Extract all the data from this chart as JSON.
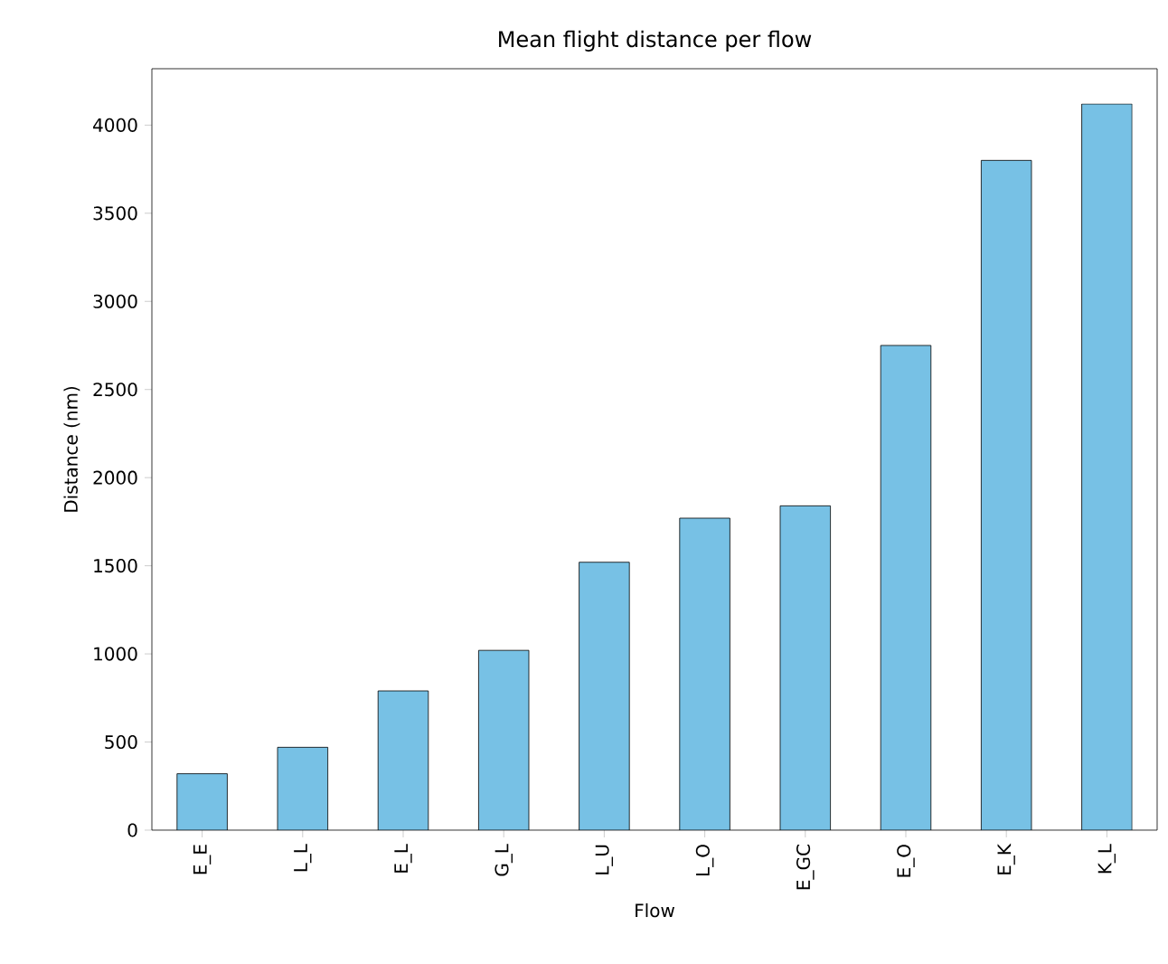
{
  "chart_data": {
    "type": "bar",
    "title": "Mean flight distance per flow",
    "xlabel": "Flow",
    "ylabel": "Distance (nm)",
    "categories": [
      "E_E",
      "L_L",
      "E_L",
      "G_L",
      "L_U",
      "L_O",
      "E_GC",
      "E_O",
      "E_K",
      "K_L"
    ],
    "values": [
      320,
      470,
      790,
      1020,
      1520,
      1770,
      1840,
      2750,
      3800,
      4120
    ],
    "color": "#77c1e5",
    "ylim": [
      0,
      4320
    ],
    "yticks": [
      0,
      500,
      1000,
      1500,
      2000,
      2500,
      3000,
      3500,
      4000
    ]
  }
}
